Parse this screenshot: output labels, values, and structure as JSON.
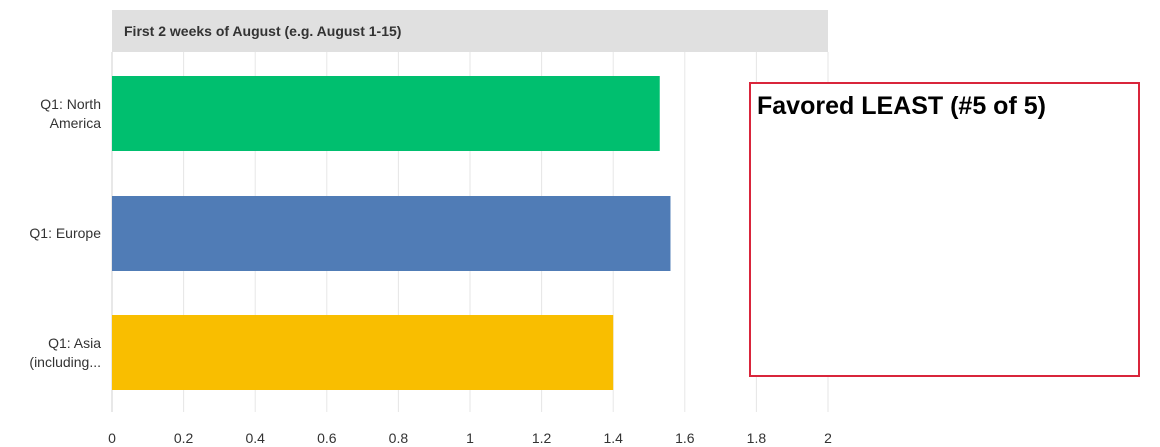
{
  "chart_data": {
    "type": "bar",
    "orientation": "horizontal",
    "panel_title": "First 2 weeks of August (e.g. August 1-15)",
    "categories": [
      [
        "Q1: North",
        "America"
      ],
      [
        "Q1: Europe"
      ],
      [
        "Q1: Asia",
        "(including..."
      ]
    ],
    "values": [
      1.53,
      1.56,
      1.4
    ],
    "colors": [
      "#00bf6f",
      "#507cb6",
      "#f9be00"
    ],
    "xlim": [
      0,
      2
    ],
    "xticks": [
      "0",
      "0.2",
      "0.4",
      "0.6",
      "0.8",
      "1",
      "1.2",
      "1.4",
      "1.6",
      "1.8",
      "2"
    ],
    "grid": true,
    "annotation": "Favored LEAST (#5 of 5)",
    "annotation_color": "#d9253b"
  }
}
